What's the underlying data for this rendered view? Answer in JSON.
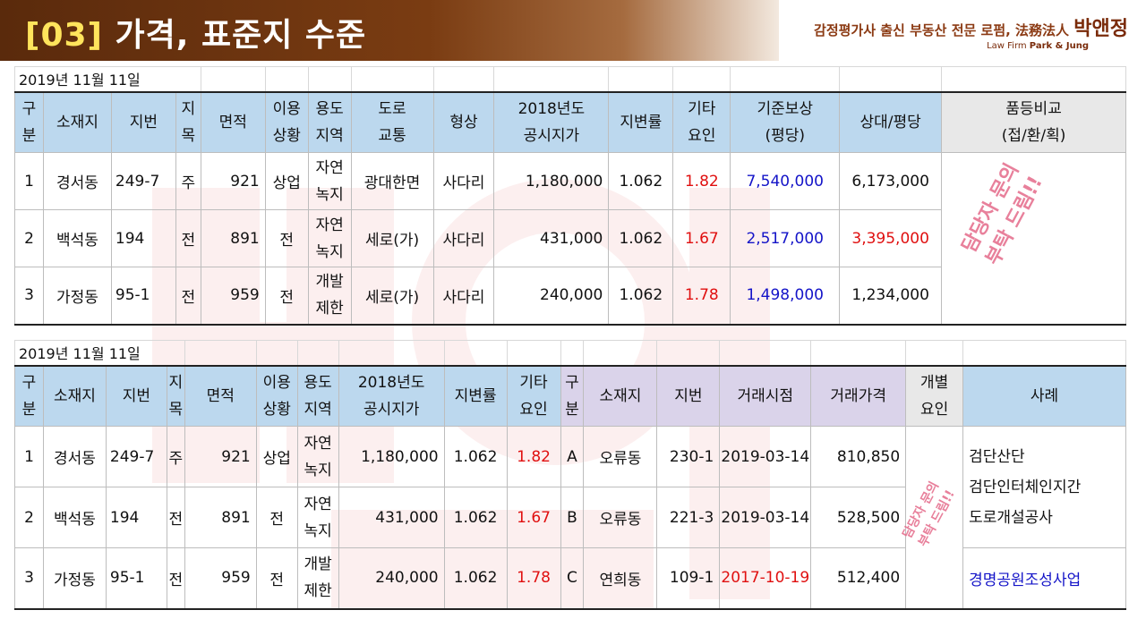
{
  "title": {
    "code": "[03]",
    "rest": " 가격, 표준지 수준"
  },
  "brand": {
    "line1_prefix": "감정평가사 출신 부동산 전문 로펌, 法務法人 ",
    "line1_name": "박앤정",
    "line2_prefix": "Law Firm ",
    "line2_name": "Park & Jung"
  },
  "stamp": {
    "text1": "담당자 문의",
    "text2": "부탁 드림!!"
  },
  "colors": {
    "header_blue": "#bcd8ee",
    "header_purple": "#dad3ea",
    "title_bg": "#6b340f",
    "accent_red": "#e01010",
    "accent_blue": "#1414c8"
  },
  "table1": {
    "date": "2019년 11월 11일",
    "headers": [
      "구\n분",
      "소재지",
      "지번",
      "지\n목",
      "면적",
      "이용\n상황",
      "용도\n지역",
      "도로\n교통",
      "형상",
      "2018년도\n공시지가",
      "지변률",
      "기타\n요인",
      "기준보상\n(평당)",
      "상대/평당",
      "품등비교\n(접/환/획)"
    ],
    "rows": [
      {
        "no": "1",
        "loc": "경서동",
        "lot": "249-7",
        "jimok": "주",
        "area": "921",
        "use": "상업",
        "zone": "자연\n녹지",
        "road": "광대한면",
        "shape": "사다리",
        "price": "1,180,000",
        "rate": "1.062",
        "factor": "1.82",
        "base": "7,540,000",
        "rel": "6,173,000",
        "rel_red": false
      },
      {
        "no": "2",
        "loc": "백석동",
        "lot": "194",
        "jimok": "전",
        "area": "891",
        "use": "전",
        "zone": "자연\n녹지",
        "road": "세로(가)",
        "shape": "사다리",
        "price": "431,000",
        "rate": "1.062",
        "factor": "1.67",
        "base": "2,517,000",
        "rel": "3,395,000",
        "rel_red": true
      },
      {
        "no": "3",
        "loc": "가정동",
        "lot": "95-1",
        "jimok": "전",
        "area": "959",
        "use": "전",
        "zone": "개발\n제한",
        "road": "세로(가)",
        "shape": "사다리",
        "price": "240,000",
        "rate": "1.062",
        "factor": "1.78",
        "base": "1,498,000",
        "rel": "1,234,000",
        "rel_red": false
      }
    ]
  },
  "table2": {
    "date": "2019년 11월 11일",
    "headers": [
      "구\n분",
      "소재지",
      "지번",
      "지\n목",
      "면적",
      "이용\n상황",
      "용도\n지역",
      "2018년도\n공시지가",
      "지변률",
      "기타\n요인",
      "구\n분",
      "소재지",
      "지번",
      "거래시점",
      "거래가격",
      "개별\n요인",
      "사례"
    ],
    "rows": [
      {
        "no": "1",
        "loc": "경서동",
        "lot": "249-7",
        "jimok": "주",
        "area": "921",
        "use": "상업",
        "zone": "자연\n녹지",
        "price": "1,180,000",
        "rate": "1.062",
        "factor": "1.82",
        "cno": "A",
        "cloc": "오류동",
        "clot": "230-1",
        "cdate": "2019-03-14",
        "cdate_red": false,
        "cprice": "810,850"
      },
      {
        "no": "2",
        "loc": "백석동",
        "lot": "194",
        "jimok": "전",
        "area": "891",
        "use": "전",
        "zone": "자연\n녹지",
        "price": "431,000",
        "rate": "1.062",
        "factor": "1.67",
        "cno": "B",
        "cloc": "오류동",
        "clot": "221-3",
        "cdate": "2019-03-14",
        "cdate_red": false,
        "cprice": "528,500"
      },
      {
        "no": "3",
        "loc": "가정동",
        "lot": "95-1",
        "jimok": "전",
        "area": "959",
        "use": "전",
        "zone": "개발\n제한",
        "price": "240,000",
        "rate": "1.062",
        "factor": "1.78",
        "cno": "C",
        "cloc": "연희동",
        "clot": "109-1",
        "cdate": "2017-10-19",
        "cdate_red": true,
        "cprice": "512,400"
      }
    ],
    "cases": {
      "case1": "검단산단\n검단인터체인지간\n도로개설공사",
      "case2": "경명공원조성사업"
    }
  }
}
